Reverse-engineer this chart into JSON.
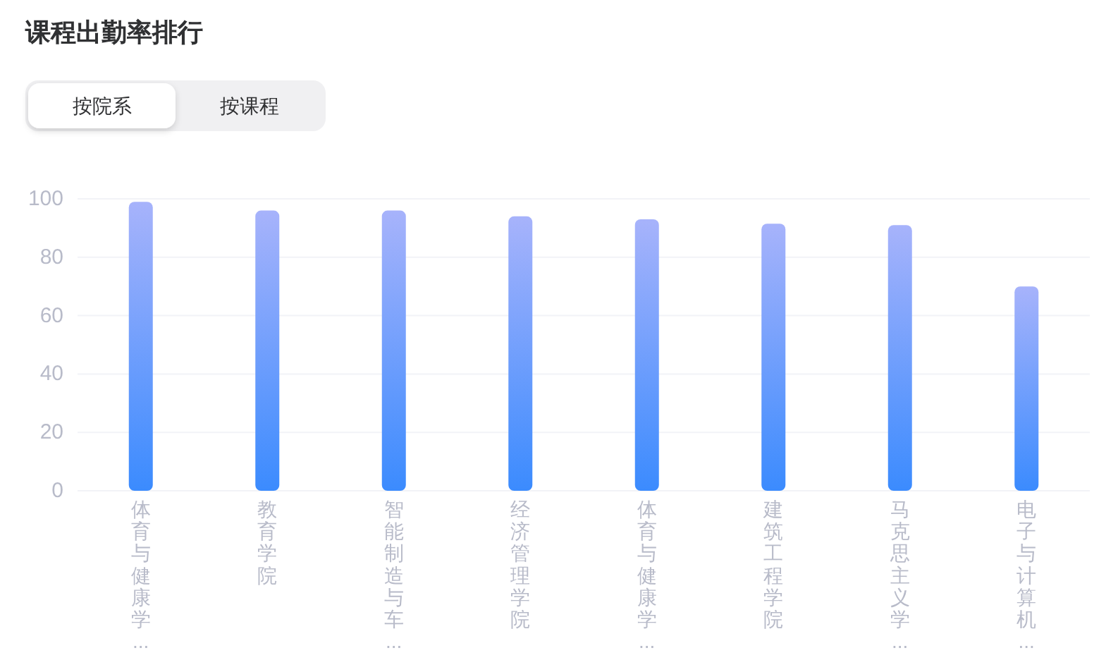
{
  "chart_data": {
    "type": "bar",
    "title": "课程出勤率排行",
    "annotations": [
      "按院系",
      "按课程"
    ],
    "categories": [
      "体育与健康学...",
      "教育学院",
      "智能制造与车...",
      "经济管理学院",
      "体育与健康学...",
      "建筑工程学院",
      "马克思主义学...",
      "电子与计算机..."
    ],
    "series": [
      {
        "color": "#709ffc",
        "values": [
          99,
          96,
          96,
          94,
          93,
          91.5,
          91,
          70
        ]
      }
    ],
    "ylim": [
      0,
      100
    ],
    "yticks": [
      0,
      20,
      40,
      60,
      80,
      100
    ],
    "grid": "y"
  }
}
